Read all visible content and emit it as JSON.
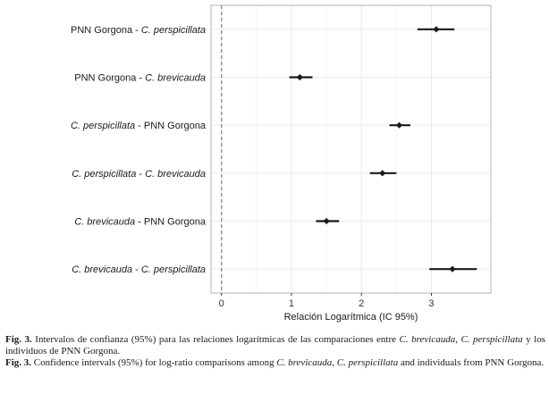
{
  "chart_data": {
    "type": "forest",
    "xlabel": "Relación Logarítmica (IC 95%)",
    "xlim": [
      -0.15,
      3.85
    ],
    "xticks": [
      0,
      1,
      2,
      3
    ],
    "reference_line_x": 0,
    "grid": true,
    "rows": [
      {
        "label_parts": [
          {
            "t": "PNN Gorgona - ",
            "i": false
          },
          {
            "t": "C. perspicillata",
            "i": true
          }
        ],
        "estimate": 3.07,
        "lower": 2.8,
        "upper": 3.33
      },
      {
        "label_parts": [
          {
            "t": "PNN Gorgona - ",
            "i": false
          },
          {
            "t": "C. brevicauda",
            "i": true
          }
        ],
        "estimate": 1.12,
        "lower": 0.97,
        "upper": 1.3
      },
      {
        "label_parts": [
          {
            "t": "C. perspicillata",
            "i": true
          },
          {
            "t": " - PNN Gorgona",
            "i": false
          }
        ],
        "estimate": 2.54,
        "lower": 2.4,
        "upper": 2.7
      },
      {
        "label_parts": [
          {
            "t": "C. perspicillata",
            "i": true
          },
          {
            "t": " - ",
            "i": false
          },
          {
            "t": "C. brevicauda",
            "i": true
          }
        ],
        "estimate": 2.3,
        "lower": 2.12,
        "upper": 2.5
      },
      {
        "label_parts": [
          {
            "t": "C. brevicauda",
            "i": true
          },
          {
            "t": " - PNN Gorgona",
            "i": false
          }
        ],
        "estimate": 1.5,
        "lower": 1.35,
        "upper": 1.68
      },
      {
        "label_parts": [
          {
            "t": "C. brevicauda",
            "i": true
          },
          {
            "t": " - ",
            "i": false
          },
          {
            "t": "C. perspicillata",
            "i": true
          }
        ],
        "estimate": 3.3,
        "lower": 2.97,
        "upper": 3.65
      }
    ]
  },
  "caption": {
    "es": [
      {
        "t": "Fig. 3.",
        "b": true,
        "i": false
      },
      {
        "t": " Intervalos de confianza (95%) para las relaciones logarítmicas  de las comparaciones entre ",
        "b": false,
        "i": false
      },
      {
        "t": "C. brevicauda",
        "b": false,
        "i": true
      },
      {
        "t": ", ",
        "b": false,
        "i": false
      },
      {
        "t": "C. perspicillata",
        "b": false,
        "i": true
      },
      {
        "t": " y los individuos de PNN Gorgona.",
        "b": false,
        "i": false
      }
    ],
    "en": [
      {
        "t": "Fig. 3.",
        "b": true,
        "i": false
      },
      {
        "t": " Confidence intervals (95%) for log-ratio comparisons among ",
        "b": false,
        "i": false
      },
      {
        "t": "C. brevicauda",
        "b": false,
        "i": true
      },
      {
        "t": ", ",
        "b": false,
        "i": false
      },
      {
        "t": "C. perspicillata",
        "b": false,
        "i": true
      },
      {
        "t": " and individuals from PNN Gorgona.",
        "b": false,
        "i": false
      }
    ]
  },
  "colors": {
    "panel_border": "#b3b3b3",
    "grid_major": "#ebebeb",
    "grid_minor": "#f5f5f5",
    "marker": "#1a1a1a",
    "reference_line": "#808080"
  }
}
